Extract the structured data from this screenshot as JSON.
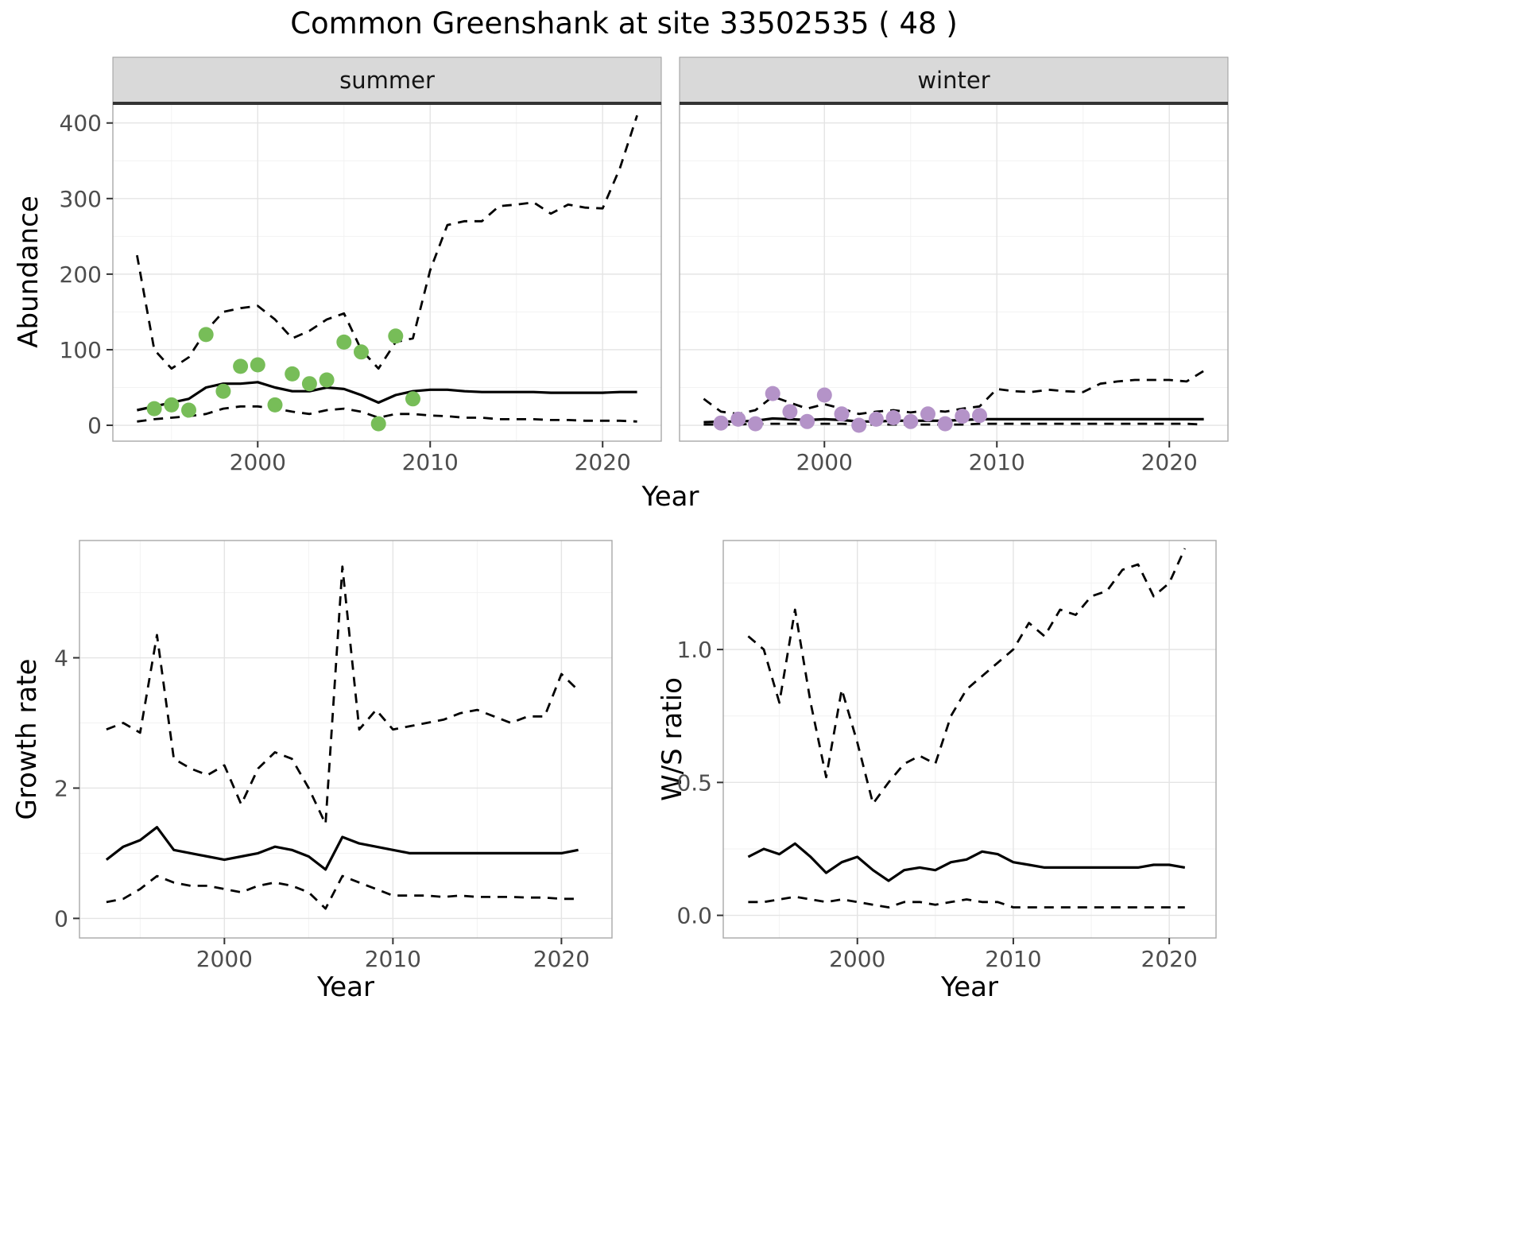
{
  "title": "Common Greenshank at site 33502535 ( 48 )",
  "colors": {
    "summer_points": "#77bd58",
    "winter_points": "#b493c8",
    "line": "#000000",
    "strip_background": "#d9d9d9"
  },
  "chart_data": [
    {
      "id": "abundance_summer",
      "type": "line",
      "facet": "summer",
      "xlabel": "Year",
      "ylabel": "Abundance",
      "xlim": [
        1991.6,
        2023.4
      ],
      "ylim": [
        -21,
        426
      ],
      "xticks": [
        2000,
        2010,
        2020
      ],
      "xtick_labels": [
        "2000",
        "2010",
        "2020"
      ],
      "yticks": [
        0,
        100,
        200,
        300,
        400
      ],
      "ytick_labels": [
        "0",
        "100",
        "200",
        "300",
        "400"
      ],
      "x": [
        1993,
        1994,
        1995,
        1996,
        1997,
        1998,
        1999,
        2000,
        2001,
        2002,
        2003,
        2004,
        2005,
        2006,
        2007,
        2008,
        2009,
        2010,
        2011,
        2012,
        2013,
        2014,
        2015,
        2016,
        2017,
        2018,
        2019,
        2020,
        2021,
        2022
      ],
      "series": [
        {
          "name": "lower_ci",
          "style": "dashed",
          "values": [
            5,
            8,
            10,
            12,
            15,
            22,
            25,
            25,
            22,
            18,
            15,
            20,
            22,
            18,
            10,
            15,
            15,
            13,
            12,
            10,
            10,
            8,
            8,
            8,
            7,
            7,
            6,
            6,
            6,
            5
          ]
        },
        {
          "name": "upper_ci",
          "style": "dashed",
          "values": [
            225,
            100,
            75,
            90,
            125,
            150,
            155,
            158,
            140,
            115,
            125,
            140,
            148,
            100,
            75,
            110,
            115,
            205,
            265,
            270,
            270,
            290,
            292,
            295,
            280,
            292,
            288,
            287,
            340,
            410
          ]
        },
        {
          "name": "median",
          "style": "solid",
          "values": [
            20,
            25,
            30,
            35,
            50,
            55,
            55,
            57,
            50,
            45,
            45,
            50,
            48,
            40,
            30,
            40,
            45,
            47,
            47,
            45,
            44,
            44,
            44,
            44,
            43,
            43,
            43,
            43,
            44,
            44
          ]
        }
      ],
      "points": {
        "name": "observed-summer-counts",
        "color": "#77bd58",
        "x": [
          1994,
          1995,
          1996,
          1997,
          1998,
          1999,
          2000,
          2001,
          2002,
          2003,
          2004,
          2005,
          2006,
          2007,
          2008,
          2009
        ],
        "y": [
          22,
          27,
          20,
          120,
          45,
          78,
          80,
          27,
          68,
          55,
          60,
          110,
          97,
          2,
          118,
          35
        ]
      }
    },
    {
      "id": "abundance_winter",
      "type": "line",
      "facet": "winter",
      "xlabel": "Year",
      "ylabel": "Abundance",
      "xlim": [
        1991.6,
        2023.4
      ],
      "ylim": [
        -21,
        426
      ],
      "xticks": [
        2000,
        2010,
        2020
      ],
      "xtick_labels": [
        "2000",
        "2010",
        "2020"
      ],
      "yticks": [
        0,
        100,
        200,
        300,
        400
      ],
      "ytick_labels": [
        "0",
        "100",
        "200",
        "300",
        "400"
      ],
      "x": [
        1993,
        1994,
        1995,
        1996,
        1997,
        1998,
        1999,
        2000,
        2001,
        2002,
        2003,
        2004,
        2005,
        2006,
        2007,
        2008,
        2009,
        2010,
        2011,
        2012,
        2013,
        2014,
        2015,
        2016,
        2017,
        2018,
        2019,
        2020,
        2021,
        2022
      ],
      "series": [
        {
          "name": "lower_ci",
          "style": "dashed",
          "values": [
            1,
            1,
            1,
            2,
            2,
            2,
            2,
            2,
            2,
            1,
            1,
            1,
            1,
            1,
            1,
            1,
            2,
            2,
            2,
            2,
            2,
            2,
            2,
            2,
            2,
            2,
            2,
            2,
            2,
            1
          ]
        },
        {
          "name": "upper_ci",
          "style": "dashed",
          "values": [
            35,
            18,
            15,
            20,
            38,
            30,
            22,
            28,
            22,
            15,
            18,
            20,
            17,
            20,
            18,
            22,
            25,
            48,
            45,
            44,
            47,
            45,
            44,
            55,
            58,
            60,
            60,
            60,
            58,
            72
          ]
        },
        {
          "name": "median",
          "style": "solid",
          "values": [
            4,
            5,
            5,
            6,
            9,
            8,
            7,
            8,
            7,
            5,
            5,
            6,
            6,
            6,
            6,
            7,
            8,
            8,
            8,
            8,
            8,
            8,
            8,
            8,
            8,
            8,
            8,
            8,
            8,
            8
          ]
        }
      ],
      "points": {
        "name": "observed-winter-counts",
        "color": "#b493c8",
        "x": [
          1994,
          1995,
          1996,
          1997,
          1998,
          1999,
          2000,
          2001,
          2002,
          2003,
          2004,
          2005,
          2006,
          2007,
          2008,
          2009
        ],
        "y": [
          3,
          8,
          2,
          42,
          18,
          5,
          40,
          15,
          0,
          8,
          10,
          5,
          15,
          2,
          12,
          13
        ]
      }
    },
    {
      "id": "growth_rate",
      "type": "line",
      "facet": null,
      "xlabel": "Year",
      "ylabel": "Growth rate",
      "xlim": [
        1991.4,
        2023.0
      ],
      "ylim": [
        -0.3,
        5.8
      ],
      "xticks": [
        2000,
        2010,
        2020
      ],
      "xtick_labels": [
        "2000",
        "2010",
        "2020"
      ],
      "yticks": [
        0,
        2,
        4
      ],
      "ytick_labels": [
        "0",
        "2",
        "4"
      ],
      "x": [
        1993,
        1994,
        1995,
        1996,
        1997,
        1998,
        1999,
        2000,
        2001,
        2002,
        2003,
        2004,
        2005,
        2006,
        2007,
        2008,
        2009,
        2010,
        2011,
        2012,
        2013,
        2014,
        2015,
        2016,
        2017,
        2018,
        2019,
        2020,
        2021
      ],
      "series": [
        {
          "name": "lower_ci",
          "style": "dashed",
          "values": [
            0.25,
            0.3,
            0.45,
            0.65,
            0.55,
            0.5,
            0.5,
            0.45,
            0.4,
            0.5,
            0.55,
            0.5,
            0.4,
            0.15,
            0.65,
            0.55,
            0.45,
            0.35,
            0.35,
            0.35,
            0.33,
            0.35,
            0.33,
            0.33,
            0.33,
            0.32,
            0.32,
            0.3,
            0.3
          ]
        },
        {
          "name": "upper_ci",
          "style": "dashed",
          "values": [
            2.9,
            3.0,
            2.85,
            4.35,
            2.45,
            2.3,
            2.2,
            2.35,
            1.75,
            2.3,
            2.55,
            2.45,
            2.0,
            1.45,
            5.4,
            2.9,
            3.2,
            2.9,
            2.95,
            3.0,
            3.05,
            3.15,
            3.2,
            3.1,
            3.0,
            3.1,
            3.1,
            3.75,
            3.5
          ]
        },
        {
          "name": "median",
          "style": "solid",
          "values": [
            0.9,
            1.1,
            1.2,
            1.4,
            1.05,
            1.0,
            0.95,
            0.9,
            0.95,
            1.0,
            1.1,
            1.05,
            0.95,
            0.75,
            1.25,
            1.15,
            1.1,
            1.05,
            1.0,
            1.0,
            1.0,
            1.0,
            1.0,
            1.0,
            1.0,
            1.0,
            1.0,
            1.0,
            1.05
          ]
        }
      ],
      "points": null
    },
    {
      "id": "ws_ratio",
      "type": "line",
      "facet": null,
      "xlabel": "Year",
      "ylabel": "W/S ratio",
      "xlim": [
        1991.4,
        2023.0
      ],
      "ylim": [
        -0.085,
        1.41
      ],
      "xticks": [
        2000,
        2010,
        2020
      ],
      "xtick_labels": [
        "2000",
        "2010",
        "2020"
      ],
      "yticks": [
        0,
        0.5,
        1
      ],
      "ytick_labels": [
        "0.0",
        "0.5",
        "1.0"
      ],
      "x": [
        1993,
        1994,
        1995,
        1996,
        1997,
        1998,
        1999,
        2000,
        2001,
        2002,
        2003,
        2004,
        2005,
        2006,
        2007,
        2008,
        2009,
        2010,
        2011,
        2012,
        2013,
        2014,
        2015,
        2016,
        2017,
        2018,
        2019,
        2020,
        2021
      ],
      "series": [
        {
          "name": "lower_ci",
          "style": "dashed",
          "values": [
            0.05,
            0.05,
            0.06,
            0.07,
            0.06,
            0.05,
            0.06,
            0.05,
            0.04,
            0.03,
            0.05,
            0.05,
            0.04,
            0.05,
            0.06,
            0.05,
            0.05,
            0.03,
            0.03,
            0.03,
            0.03,
            0.03,
            0.03,
            0.03,
            0.03,
            0.03,
            0.03,
            0.03,
            0.03
          ]
        },
        {
          "name": "upper_ci",
          "style": "dashed",
          "values": [
            1.05,
            1.0,
            0.8,
            1.15,
            0.8,
            0.52,
            0.85,
            0.65,
            0.42,
            0.5,
            0.57,
            0.6,
            0.57,
            0.75,
            0.85,
            0.9,
            0.95,
            1.0,
            1.1,
            1.05,
            1.15,
            1.13,
            1.2,
            1.22,
            1.3,
            1.32,
            1.2,
            1.25,
            1.38
          ]
        },
        {
          "name": "median",
          "style": "solid",
          "values": [
            0.22,
            0.25,
            0.23,
            0.27,
            0.22,
            0.16,
            0.2,
            0.22,
            0.17,
            0.13,
            0.17,
            0.18,
            0.17,
            0.2,
            0.21,
            0.24,
            0.23,
            0.2,
            0.19,
            0.18,
            0.18,
            0.18,
            0.18,
            0.18,
            0.18,
            0.18,
            0.19,
            0.19,
            0.18
          ]
        }
      ],
      "points": null
    }
  ]
}
